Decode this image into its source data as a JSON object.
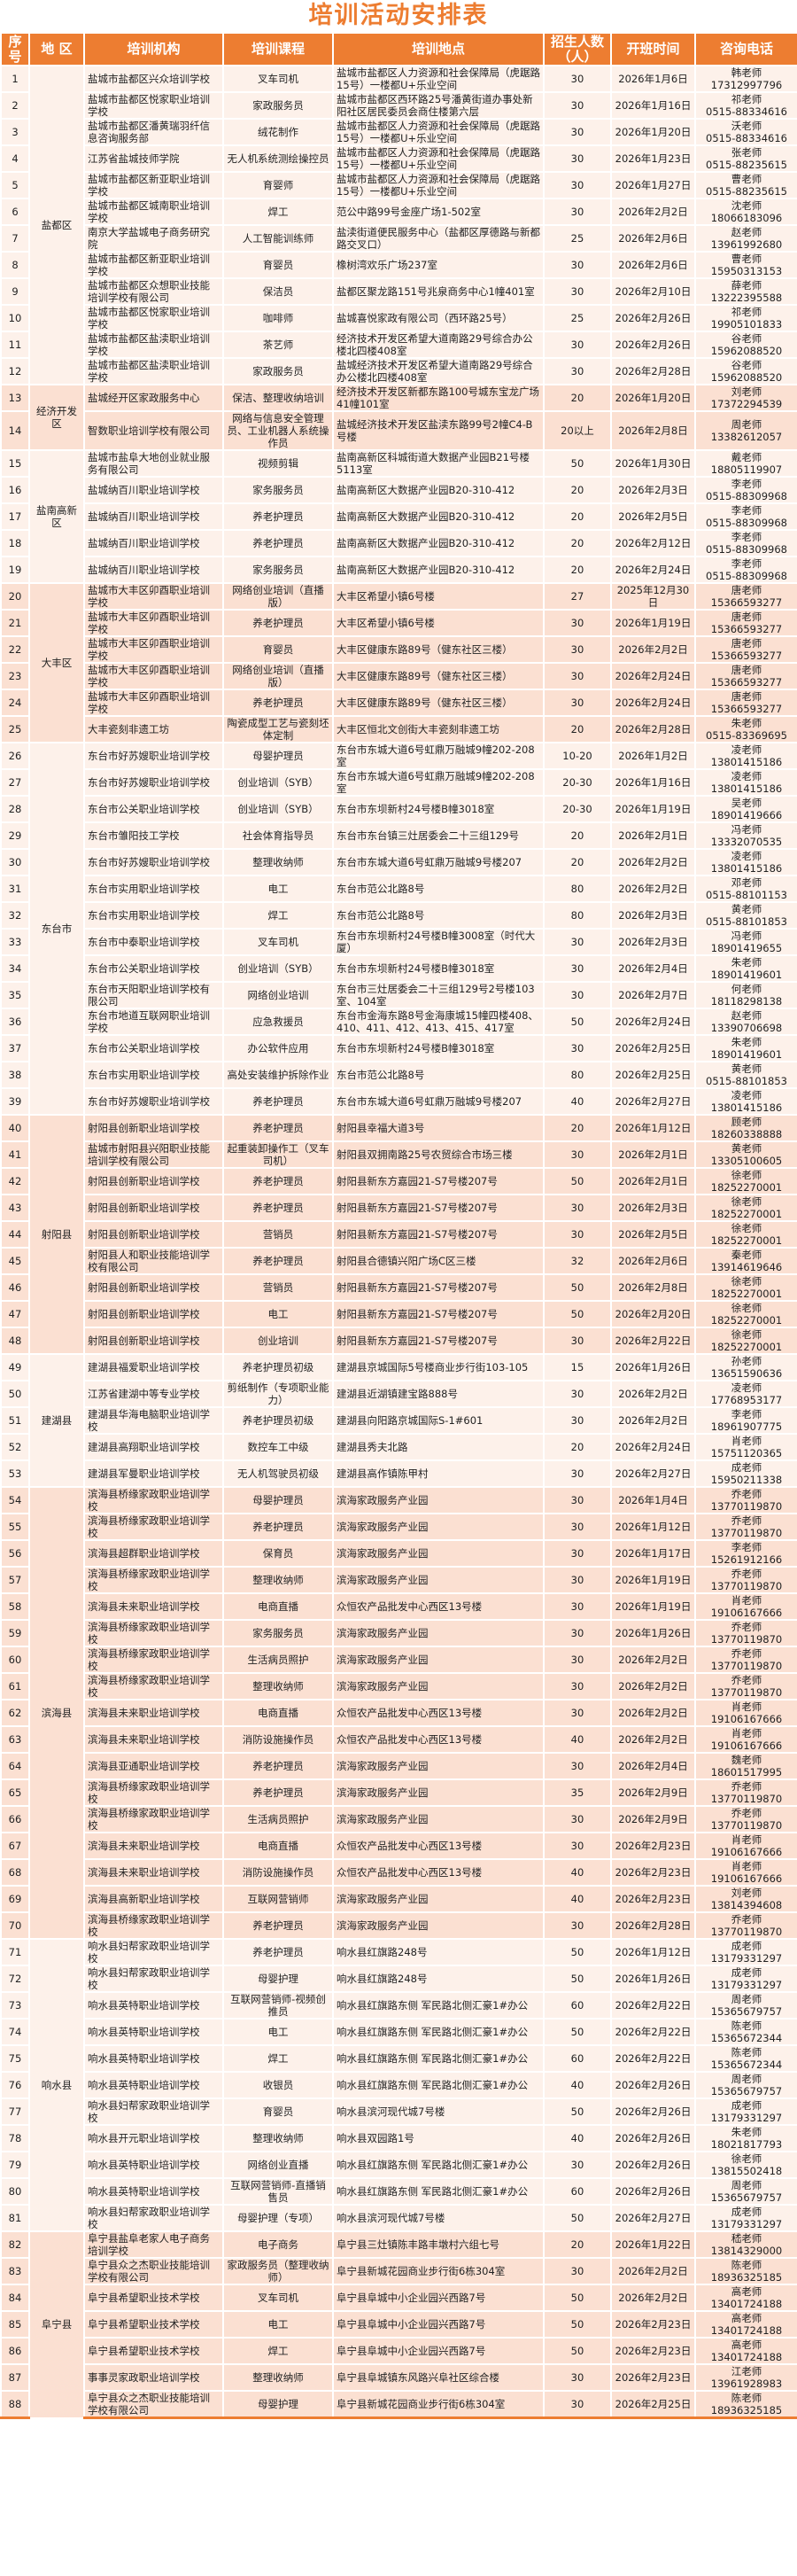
{
  "title": "培训活动安排表",
  "colors": {
    "accent": "#ed7d31",
    "row_light": "#fdf1ea",
    "row_dark": "#fbe0d2"
  },
  "headers": [
    "序号",
    "地 区",
    "培训机构",
    "培训课程",
    "培训地点",
    "招生人数（人）",
    "开班时间",
    "咨询电话"
  ],
  "regions": [
    {
      "name": "盐都区",
      "rows": [
        [
          "1",
          "盐城市盐都区兴众培训学校",
          "叉车司机",
          "盐城市盐都区人力资源和社会保障局（虎踞路15号）一楼都U+乐业空间",
          "30",
          "2026年1月6日",
          "韩老师",
          "17312997796"
        ],
        [
          "2",
          "盐城市盐都区悦家职业培训学校",
          "家政服务员",
          "盐城市盐都区西环路25号潘黄街道办事处新阳社区居民委员会商住楼第六层",
          "30",
          "2026年1月16日",
          "祁老师",
          "0515-88334616"
        ],
        [
          "3",
          "盐城市盐都区潘黄瑞羽纤信息咨询服务部",
          "绒花制作",
          "盐城市盐都区人力资源和社会保障局（虎踞路15号）一楼都U+乐业空间",
          "30",
          "2026年1月20日",
          "沃老师",
          "0515-88334616"
        ],
        [
          "4",
          "江苏省盐城技师学院",
          "无人机系统测绘操控员",
          "盐城市盐都区人力资源和社会保障局（虎踞路15号）一楼都U+乐业空间",
          "30",
          "2026年1月23日",
          "张老师",
          "0515-88235615"
        ],
        [
          "5",
          "盐城市盐都区新亚职业培训学校",
          "育婴师",
          "盐城市盐都区人力资源和社会保障局（虎踞路15号）一楼都U+乐业空间",
          "30",
          "2026年1月27日",
          "曹老师",
          "0515-88235615"
        ],
        [
          "6",
          "盐城市盐都区城南职业培训学校",
          "焊工",
          "范公中路99号金座广场1-502室",
          "30",
          "2026年2月2日",
          "沈老师",
          "18066183096"
        ],
        [
          "7",
          "南京大学盐城电子商务研究院",
          "人工智能训练师",
          "盐渎街道便民服务中心（盐都区厚德路与新都路交叉口）",
          "25",
          "2026年2月6日",
          "赵老师",
          "13961992680"
        ],
        [
          "8",
          "盐城市盐都区新亚职业培训学校",
          "育婴员",
          "橡树湾欢乐广场237室",
          "30",
          "2026年2月6日",
          "曹老师",
          "15950313153"
        ],
        [
          "9",
          "盐城市盐都区众想职业技能培训学校有限公司",
          "保洁员",
          "盐都区聚龙路151号兆泉商务中心1幢401室",
          "30",
          "2026年2月10日",
          "薛老师",
          "13222395588"
        ],
        [
          "10",
          "盐城市盐都区悦家职业培训学校",
          "咖啡师",
          "盐城喜悦家政有限公司（西环路25号）",
          "25",
          "2026年2月26日",
          "祁老师",
          "19905101833"
        ],
        [
          "11",
          "盐城市盐都区盐渎职业培训学校",
          "茶艺师",
          "经济技术开发区希望大道南路29号综合办公楼北四楼408室",
          "30",
          "2026年2月26日",
          "谷老师",
          "15962088520"
        ],
        [
          "12",
          "盐城市盐都区盐渎职业培训学校",
          "家政服务员",
          "盐城经济技术开发区希望大道南路29号综合办公楼北四楼408室",
          "30",
          "2026年2月28日",
          "谷老师",
          "15962088520"
        ]
      ]
    },
    {
      "name": "经济开发区",
      "rows": [
        [
          "13",
          "盐城经开区家政服务中心",
          "保洁、整理收纳培训",
          "经济技术开发区新都东路100号城东宝龙广场41幢101室",
          "20",
          "2026年1月20日",
          "刘老师",
          "17372294539"
        ],
        [
          "14",
          "智数职业培训学校有限公司",
          "网络与信息安全管理员、工业机器人系统操作员",
          "盐城经济技术开发区盐渎东路99号2幢C4-B号楼",
          "20以上",
          "2026年2月8日",
          "周老师",
          "13382612057"
        ]
      ]
    },
    {
      "name": "盐南高新区",
      "rows": [
        [
          "15",
          "盐城市盐阜大地创业就业服务有限公司",
          "视频剪辑",
          "盐南高新区科城街道大数据产业园B21号楼5113室",
          "50",
          "2026年1月30日",
          "戴老师",
          "18805119907"
        ],
        [
          "16",
          "盐城纳百川职业培训学校",
          "家务服务员",
          "盐南高新区大数据产业园B20-310-412",
          "20",
          "2026年2月3日",
          "李老师",
          "0515-88309968"
        ],
        [
          "17",
          "盐城纳百川职业培训学校",
          "养老护理员",
          "盐南高新区大数据产业园B20-310-412",
          "20",
          "2026年2月5日",
          "李老师",
          "0515-88309968"
        ],
        [
          "18",
          "盐城纳百川职业培训学校",
          "养老护理员",
          "盐南高新区大数据产业园B20-310-412",
          "20",
          "2026年2月12日",
          "李老师",
          "0515-88309968"
        ],
        [
          "19",
          "盐城纳百川职业培训学校",
          "家务服务员",
          "盐南高新区大数据产业园B20-310-412",
          "20",
          "2026年2月24日",
          "李老师",
          "0515-88309968"
        ]
      ]
    },
    {
      "name": "大丰区",
      "rows": [
        [
          "20",
          "盐城市大丰区卯酉职业培训学校",
          "网络创业培训（直播版）",
          "大丰区希望小镇6号楼",
          "27",
          "2025年12月30日",
          "唐老师",
          "15366593277"
        ],
        [
          "21",
          "盐城市大丰区卯酉职业培训学校",
          "养老护理员",
          "大丰区希望小镇6号楼",
          "30",
          "2026年1月19日",
          "唐老师",
          "15366593277"
        ],
        [
          "22",
          "盐城市大丰区卯酉职业培训学校",
          "育婴员",
          "大丰区健康东路89号（健东社区三楼）",
          "30",
          "2026年2月2日",
          "唐老师",
          "15366593277"
        ],
        [
          "23",
          "盐城市大丰区卯酉职业培训学校",
          "网络创业培训（直播版）",
          "大丰区健康东路89号（健东社区三楼）",
          "30",
          "2026年2月24日",
          "唐老师",
          "15366593277"
        ],
        [
          "24",
          "盐城市大丰区卯酉职业培训学校",
          "养老护理员",
          "大丰区健康东路89号（健东社区三楼）",
          "30",
          "2026年2月24日",
          "唐老师",
          "15366593277"
        ],
        [
          "25",
          "大丰瓷刻非遗工坊",
          "陶瓷成型工艺与瓷刻坯体定制",
          "大丰区恒北文创街大丰瓷刻非遗工坊",
          "20",
          "2026年2月28日",
          "朱老师",
          "0515-83369695"
        ]
      ]
    },
    {
      "name": "东台市",
      "rows": [
        [
          "26",
          "东台市好苏嫂职业培训学校",
          "母婴护理员",
          "东台市东城大道6号虹鼎万融城9幢202-208室",
          "10-20",
          "2026年1月2日",
          "凌老师",
          "13801415186"
        ],
        [
          "27",
          "东台市好苏嫂职业培训学校",
          "创业培训（SYB）",
          "东台市东城大道6号虹鼎万融城9幢202-208室",
          "20-30",
          "2026年1月16日",
          "凌老师",
          "13801415186"
        ],
        [
          "28",
          "东台市公关职业培训学校",
          "创业培训（SYB）",
          "东台市东坝新村24号楼B幢3018室",
          "20-30",
          "2026年1月19日",
          "吴老师",
          "18901419666"
        ],
        [
          "29",
          "东台市雏阳技工学校",
          "社会体育指导员",
          "东台市东台镇三灶居委会二十三组129号",
          "20",
          "2026年2月1日",
          "冯老师",
          "13332070535"
        ],
        [
          "30",
          "东台市好苏嫂职业培训学校",
          "整理收纳师",
          "东台市东城大道6号虹鼎万融城9号楼207",
          "20",
          "2026年2月2日",
          "凌老师",
          "13801415186"
        ],
        [
          "31",
          "东台市实用职业培训学校",
          "电工",
          "东台市范公北路8号",
          "80",
          "2026年2月2日",
          "邓老师",
          "0515-88101153"
        ],
        [
          "32",
          "东台市实用职业培训学校",
          "焊工",
          "东台市范公北路8号",
          "80",
          "2026年2月3日",
          "黄老师",
          "0515-88101853"
        ],
        [
          "33",
          "东台市中泰职业培训学校",
          "叉车司机",
          "东台市东坝新村24号楼B幢3008室（时代大厦）",
          "30",
          "2026年2月3日",
          "冯老师",
          "18901419655"
        ],
        [
          "34",
          "东台市公关职业培训学校",
          "创业培训（SYB）",
          "东台市东坝新村24号楼B幢3018室",
          "30",
          "2026年2月4日",
          "朱老师",
          "18901419601"
        ],
        [
          "35",
          "东台市天阳职业培训学校有限公司",
          "网络创业培训",
          "东台市三灶居委会二十三组129号2号楼103室、104室",
          "30",
          "2026年2月7日",
          "何老师",
          "18118298138"
        ],
        [
          "36",
          "东台市地道互联网职业培训学校",
          "应急救援员",
          "东台市金海东路8号金海康城15幢四楼408、410、411、412、413、415、417室",
          "50",
          "2026年2月24日",
          "赵老师",
          "13390706698"
        ],
        [
          "37",
          "东台市公关职业培训学校",
          "办公软件应用",
          "东台市东坝新村24号楼B幢3018室",
          "30",
          "2026年2月25日",
          "朱老师",
          "18901419601"
        ],
        [
          "38",
          "东台市实用职业培训学校",
          "高处安装维护拆除作业",
          "东台市范公北路8号",
          "80",
          "2026年2月25日",
          "黄老师",
          "0515-88101853"
        ],
        [
          "39",
          "东台市好苏嫂职业培训学校",
          "养老护理员",
          "东台市东城大道6号虹鼎万融城9号楼207",
          "40",
          "2026年2月27日",
          "凌老师",
          "13801415186"
        ]
      ]
    },
    {
      "name": "射阳县",
      "rows": [
        [
          "40",
          "射阳县创新职业培训学校",
          "养老护理员",
          "射阳县幸福大道3号",
          "20",
          "2026年1月12日",
          "顾老师",
          "18260338888"
        ],
        [
          "41",
          "盐城市射阳县兴阳职业技能培训学校有限公司",
          "起重装卸操作工（叉车司机）",
          "射阳县双拥南路25号农贸综合市场三楼",
          "30",
          "2026年2月1日",
          "黄老师",
          "13305100605"
        ],
        [
          "42",
          "射阳县创新职业培训学校",
          "养老护理员",
          "射阳县新东方嘉园21-S7号楼207号",
          "50",
          "2026年2月1日",
          "徐老师",
          "18252270001"
        ],
        [
          "43",
          "射阳县创新职业培训学校",
          "养老护理员",
          "射阳县新东方嘉园21-S7号楼207号",
          "30",
          "2026年2月3日",
          "徐老师",
          "18252270001"
        ],
        [
          "44",
          "射阳县创新职业培训学校",
          "营销员",
          "射阳县新东方嘉园21-S7号楼207号",
          "30",
          "2026年2月5日",
          "徐老师",
          "18252270001"
        ],
        [
          "45",
          "射阳县人和职业技能培训学校有限公司",
          "养老护理员",
          "射阳县合德镇兴阳广场C区三楼",
          "32",
          "2026年2月6日",
          "秦老师",
          "13914619646"
        ],
        [
          "46",
          "射阳县创新职业培训学校",
          "营销员",
          "射阳县新东方嘉园21-S7号楼207号",
          "50",
          "2026年2月8日",
          "徐老师",
          "18252270001"
        ],
        [
          "47",
          "射阳县创新职业培训学校",
          "电工",
          "射阳县新东方嘉园21-S7号楼207号",
          "50",
          "2026年2月20日",
          "徐老师",
          "18252270001"
        ],
        [
          "48",
          "射阳县创新职业培训学校",
          "创业培训",
          "射阳县新东方嘉园21-S7号楼207号",
          "30",
          "2026年2月22日",
          "徐老师",
          "18252270001"
        ]
      ]
    },
    {
      "name": "建湖县",
      "rows": [
        [
          "49",
          "建湖县福爱职业培训学校",
          "养老护理员初级",
          "建湖县京城国际5号楼商业步行街103-105",
          "15",
          "2026年1月26日",
          "孙老师",
          "13651590636"
        ],
        [
          "50",
          "江苏省建湖中等专业学校",
          "剪纸制作（专项职业能力）",
          "建湖县近湖镇建宝路888号",
          "30",
          "2026年2月2日",
          "凌老师",
          "17768953177"
        ],
        [
          "51",
          "建湖县华海电脑职业培训学校",
          "养老护理员初级",
          "建湖县向阳路京城国际S-1#601",
          "30",
          "2026年2月2日",
          "李老师",
          "18961907775"
        ],
        [
          "52",
          "建湖县高翔职业培训学校",
          "数控车工中级",
          "建湖县秀夫北路",
          "20",
          "2026年2月24日",
          "肖老师",
          "15751120365"
        ],
        [
          "53",
          "建湖县军曼职业培训学校",
          "无人机驾驶员初级",
          "建湖县高作镇陈甲村",
          "30",
          "2026年2月27日",
          "成老师",
          "15950211338"
        ]
      ]
    },
    {
      "name": "滨海县",
      "rows": [
        [
          "54",
          "滨海县桥缘家政职业培训学校",
          "母婴护理员",
          "滨海家政服务产业园",
          "30",
          "2026年1月4日",
          "乔老师",
          "13770119870"
        ],
        [
          "55",
          "滨海县桥缘家政职业培训学校",
          "养老护理员",
          "滨海家政服务产业园",
          "30",
          "2026年1月12日",
          "乔老师",
          "13770119870"
        ],
        [
          "56",
          "滨海县超群职业培训学校",
          "保育员",
          "滨海家政服务产业园",
          "30",
          "2026年1月17日",
          "李老师",
          "15261912166"
        ],
        [
          "57",
          "滨海县桥缘家政职业培训学校",
          "整理收纳师",
          "滨海家政服务产业园",
          "30",
          "2026年1月19日",
          "乔老师",
          "13770119870"
        ],
        [
          "58",
          "滨海县未来职业培训学校",
          "电商直播",
          "众恒农产品批发中心西区13号楼",
          "30",
          "2026年1月19日",
          "肖老师",
          "19106167666"
        ],
        [
          "59",
          "滨海县桥缘家政职业培训学校",
          "家务服务员",
          "滨海家政服务产业园",
          "30",
          "2026年1月26日",
          "乔老师",
          "13770119870"
        ],
        [
          "60",
          "滨海县桥缘家政职业培训学校",
          "生活病员照护",
          "滨海家政服务产业园",
          "30",
          "2026年2月2日",
          "乔老师",
          "13770119870"
        ],
        [
          "61",
          "滨海县桥缘家政职业培训学校",
          "整理收纳师",
          "滨海家政服务产业园",
          "30",
          "2026年2月2日",
          "乔老师",
          "13770119870"
        ],
        [
          "62",
          "滨海县未来职业培训学校",
          "电商直播",
          "众恒农产品批发中心西区13号楼",
          "30",
          "2026年2月2日",
          "肖老师",
          "19106167666"
        ],
        [
          "63",
          "滨海县未来职业培训学校",
          "消防设施操作员",
          "众恒农产品批发中心西区13号楼",
          "40",
          "2026年2月2日",
          "肖老师",
          "19106167666"
        ],
        [
          "64",
          "滨海县亚通职业培训学校",
          "养老护理员",
          "滨海家政服务产业园",
          "30",
          "2026年2月4日",
          "魏老师",
          "18601517995"
        ],
        [
          "65",
          "滨海县桥缘家政职业培训学校",
          "养老护理员",
          "滨海家政服务产业园",
          "35",
          "2026年2月9日",
          "乔老师",
          "13770119870"
        ],
        [
          "66",
          "滨海县桥缘家政职业培训学校",
          "生活病员照护",
          "滨海家政服务产业园",
          "30",
          "2026年2月9日",
          "乔老师",
          "13770119870"
        ],
        [
          "67",
          "滨海县未来职业培训学校",
          "电商直播",
          "众恒农产品批发中心西区13号楼",
          "30",
          "2026年2月23日",
          "肖老师",
          "19106167666"
        ],
        [
          "68",
          "滨海县未来职业培训学校",
          "消防设施操作员",
          "众恒农产品批发中心西区13号楼",
          "40",
          "2026年2月23日",
          "肖老师",
          "19106167666"
        ],
        [
          "69",
          "滨海县高新职业培训学校",
          "互联网营销师",
          "滨海家政服务产业园",
          "40",
          "2026年2月23日",
          "刘老师",
          "13814394608"
        ],
        [
          "70",
          "滨海县桥缘家政职业培训学校",
          "养老护理员",
          "滨海家政服务产业园",
          "30",
          "2026年2月28日",
          "乔老师",
          "13770119870"
        ]
      ]
    },
    {
      "name": "响水县",
      "rows": [
        [
          "71",
          "响水县妇帮家政职业培训学校",
          "养老护理员",
          "响水县红旗路248号",
          "50",
          "2026年1月12日",
          "成老师",
          "13179331297"
        ],
        [
          "72",
          "响水县妇帮家政职业培训学校",
          "母婴护理",
          "响水县红旗路248号",
          "50",
          "2026年1月26日",
          "成老师",
          "13179331297"
        ],
        [
          "73",
          "响水县英特职业培训学校",
          "互联网营销师-视频创推员",
          "响水县红旗路东侧 军民路北侧汇豪1#办公",
          "60",
          "2026年2月22日",
          "周老师",
          "15365679757"
        ],
        [
          "74",
          "响水县英特职业培训学校",
          "电工",
          "响水县红旗路东侧 军民路北侧汇豪1#办公",
          "50",
          "2026年2月22日",
          "陈老师",
          "15365672344"
        ],
        [
          "75",
          "响水县英特职业培训学校",
          "焊工",
          "响水县红旗路东侧 军民路北侧汇豪1#办公",
          "60",
          "2026年2月22日",
          "陈老师",
          "15365672344"
        ],
        [
          "76",
          "响水县英特职业培训学校",
          "收银员",
          "响水县红旗路东侧 军民路北侧汇豪1#办公",
          "40",
          "2026年2月26日",
          "周老师",
          "15365679757"
        ],
        [
          "77",
          "响水县妇帮家政职业培训学校",
          "育婴员",
          "响水县滨河现代城7号楼",
          "50",
          "2026年2月26日",
          "成老师",
          "13179331297"
        ],
        [
          "78",
          "响水县开元职业培训学校",
          "整理收纳师",
          "响水县双园路1号",
          "40",
          "2026年2月26日",
          "朱老师",
          "18021817793"
        ],
        [
          "79",
          "响水县英特职业培训学校",
          "网络创业直播",
          "响水县红旗路东侧 军民路北侧汇豪1#办公",
          "30",
          "2026年2月26日",
          "徐老师",
          "13815502418"
        ],
        [
          "80",
          "响水县英特职业培训学校",
          "互联网营销师-直播销售员",
          "响水县红旗路东侧 军民路北侧汇豪1#办公",
          "60",
          "2026年2月26日",
          "周老师",
          "15365679757"
        ],
        [
          "81",
          "响水县妇帮家政职业培训学校",
          "母婴护理（专项）",
          "响水县滨河现代城7号楼",
          "50",
          "2026年2月27日",
          "成老师",
          "13179331297"
        ]
      ]
    },
    {
      "name": "阜宁县",
      "rows": [
        [
          "82",
          "阜宁县盐阜老家人电子商务培训学校",
          "电子商务",
          "阜宁县三灶镇陈丰路丰墩村六组七号",
          "20",
          "2026年1月22日",
          "嵇老师",
          "13814329000"
        ],
        [
          "83",
          "阜宁县众之杰职业技能培训学校有限公司",
          "家政服务员（整理收纳师）",
          "阜宁县新城花园商业步行街6栋304室",
          "30",
          "2026年2月2日",
          "陈老师",
          "18936325185"
        ],
        [
          "84",
          "阜宁县希望职业技术学校",
          "叉车司机",
          "阜宁县阜城中小企业园兴西路7号",
          "50",
          "2026年2月2日",
          "高老师",
          "13401724188"
        ],
        [
          "85",
          "阜宁县希望职业技术学校",
          "电工",
          "阜宁县阜城中小企业园兴西路7号",
          "50",
          "2026年2月23日",
          "高老师",
          "13401724188"
        ],
        [
          "86",
          "阜宁县希望职业技术学校",
          "焊工",
          "阜宁县阜城中小企业园兴西路7号",
          "50",
          "2026年2月23日",
          "高老师",
          "13401724188"
        ],
        [
          "87",
          "事事灵家政职业培训学校",
          "整理收纳师",
          "阜宁县阜城镇东风路兴阜社区综合楼",
          "30",
          "2026年2月23日",
          "江老师",
          "13961928983"
        ],
        [
          "88",
          "阜宁县众之杰职业技能培训学校有限公司",
          "母婴护理",
          "阜宁县新城花园商业步行街6栋304室",
          "30",
          "2026年2月25日",
          "陈老师",
          "18936325185"
        ]
      ]
    }
  ]
}
